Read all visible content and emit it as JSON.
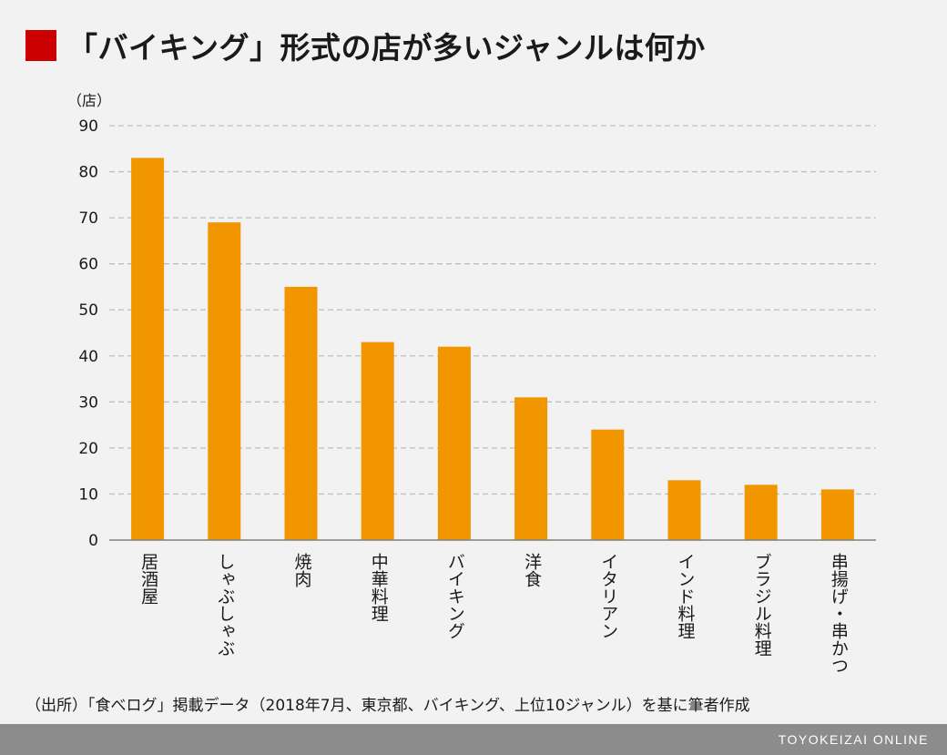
{
  "title": "「バイキング」形式の店が多いジャンルは何か",
  "colors": {
    "accent": "#cc0000",
    "bar": "#f29600",
    "grid": "#bfbfbf",
    "footer": "#8c8c8c"
  },
  "chart_data": {
    "type": "bar",
    "unit_label": "（店）",
    "categories": [
      "居酒屋",
      "しゃぶしゃぶ",
      "焼肉",
      "中華料理",
      "バイキング",
      "洋食",
      "イタリアン",
      "インド料理",
      "ブラジル料理",
      "串揚げ・串かつ"
    ],
    "values": [
      83,
      69,
      55,
      43,
      42,
      31,
      24,
      13,
      12,
      11
    ],
    "ylim": [
      0,
      90
    ],
    "yticks": [
      0,
      10,
      20,
      30,
      40,
      50,
      60,
      70,
      80,
      90
    ],
    "grid": true,
    "xlabel_orientation": "vertical"
  },
  "source": "（出所）「食べログ」掲載データ（2018年7月、東京都、バイキング、上位10ジャンル）を基に筆者作成",
  "brand": "TOYOKEIZAI ONLINE"
}
